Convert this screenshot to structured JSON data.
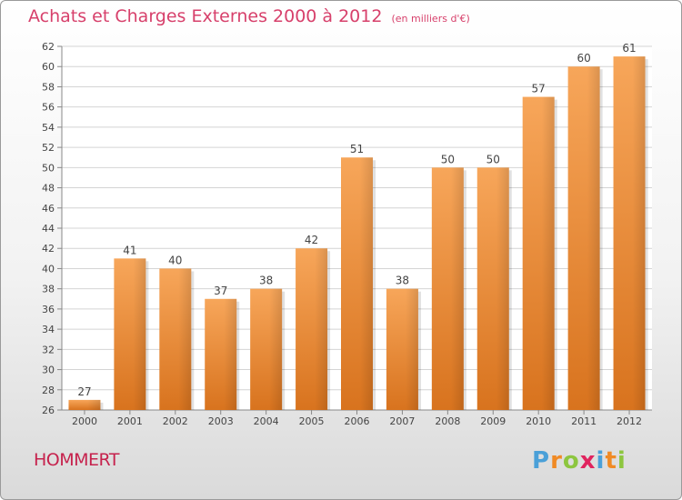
{
  "header": {
    "title": "Achats et Charges Externes 2000 à 2012",
    "unit": "(en milliers d'€)"
  },
  "footer": {
    "commune": "HOMMERT",
    "logo": "Proxiti"
  },
  "colors": {
    "bar_top": "#f7a65a",
    "bar_bottom": "#d8731e",
    "title": "#d7406b",
    "grid": "#d4d4d4"
  },
  "chart_data": {
    "type": "bar",
    "categories": [
      "2000",
      "2001",
      "2002",
      "2003",
      "2004",
      "2005",
      "2006",
      "2007",
      "2008",
      "2009",
      "2010",
      "2011",
      "2012"
    ],
    "values": [
      27,
      41,
      40,
      37,
      38,
      42,
      51,
      38,
      50,
      50,
      57,
      60,
      61
    ],
    "ylim": [
      26,
      62
    ],
    "yticks": [
      26,
      28,
      30,
      32,
      34,
      36,
      38,
      40,
      42,
      44,
      46,
      48,
      50,
      52,
      54,
      56,
      58,
      60,
      62
    ],
    "grid": true,
    "data_labels": true
  }
}
